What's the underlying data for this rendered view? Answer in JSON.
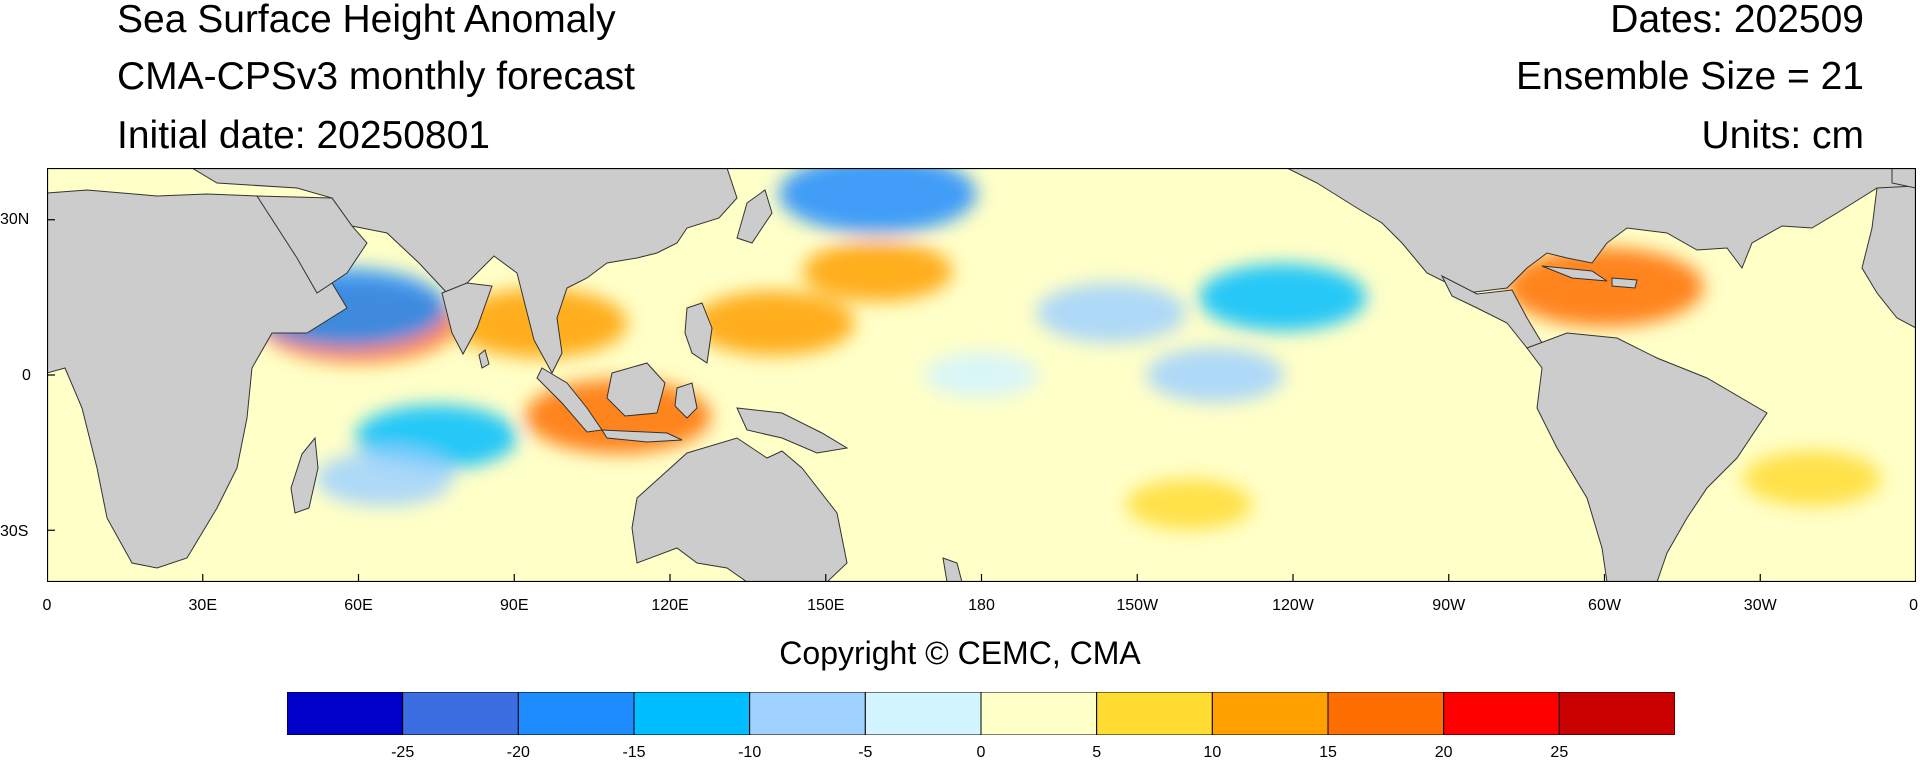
{
  "header": {
    "title": "Sea Surface Height Anomaly",
    "model": "CMA-CPSv3 monthly forecast",
    "init": "Initial date: 20250801",
    "dates": "Dates: 202509",
    "ensemble": "Ensemble Size = 21",
    "units": "Units: cm"
  },
  "map": {
    "lat_range": [
      -40,
      40
    ],
    "lon_range_east": [
      0,
      360
    ],
    "lat_ticks": [
      "30N",
      "0",
      "30S"
    ],
    "lon_ticks": [
      "0",
      "30E",
      "60E",
      "90E",
      "120E",
      "150E",
      "180",
      "150W",
      "120W",
      "90W",
      "60W",
      "30W",
      "0"
    ],
    "land_color": "#cccccc",
    "field_features": [
      {
        "lon": 75,
        "lat": -12,
        "value": -12
      },
      {
        "lon": 65,
        "lat": -20,
        "value": -8
      },
      {
        "lon": 95,
        "lat": 10,
        "value": 14
      },
      {
        "lon": 110,
        "lat": -8,
        "value": 16
      },
      {
        "lon": 60,
        "lat": 10,
        "value": 18
      },
      {
        "lon": 58,
        "lat": 13,
        "value": -18
      },
      {
        "lon": 140,
        "lat": 10,
        "value": 12
      },
      {
        "lon": 160,
        "lat": 20,
        "value": 10
      },
      {
        "lon": 205,
        "lat": 12,
        "value": -10
      },
      {
        "lon": 238,
        "lat": 15,
        "value": -13
      },
      {
        "lon": 225,
        "lat": 0,
        "value": -8
      },
      {
        "lon": 180,
        "lat": 0,
        "value": -4
      },
      {
        "lon": 300,
        "lat": 17,
        "value": 18
      },
      {
        "lon": 340,
        "lat": -20,
        "value": 8
      },
      {
        "lon": 220,
        "lat": -25,
        "value": 6
      },
      {
        "lon": 160,
        "lat": 35,
        "value": -18
      }
    ]
  },
  "copyright": "Copyright © CEMC, CMA",
  "colorbar": {
    "colors": [
      "#0000c8",
      "#3c6ee1",
      "#1e8cff",
      "#00beff",
      "#a0d2ff",
      "#d2f5ff",
      "#ffffc8",
      "#ffdc32",
      "#ffa000",
      "#ff6e00",
      "#ff0000",
      "#c80000"
    ],
    "labels": [
      "-25",
      "-20",
      "-15",
      "-10",
      "-5",
      "0",
      "5",
      "10",
      "15",
      "20",
      "25"
    ]
  }
}
